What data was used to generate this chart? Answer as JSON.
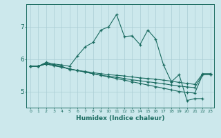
{
  "xlabel": "Humidex (Indice chaleur)",
  "background_color": "#cce8ec",
  "grid_color": "#aacdd4",
  "line_color": "#1a6b60",
  "xlim": [
    -0.5,
    23.5
  ],
  "ylim": [
    4.5,
    7.7
  ],
  "yticks": [
    5,
    6,
    7
  ],
  "xticks": [
    0,
    1,
    2,
    3,
    4,
    5,
    6,
    7,
    8,
    9,
    10,
    11,
    12,
    13,
    14,
    15,
    16,
    17,
    18,
    19,
    20,
    21,
    22,
    23
  ],
  "lines": [
    [
      5.78,
      5.78,
      5.9,
      5.85,
      5.82,
      5.78,
      6.1,
      6.38,
      6.52,
      6.9,
      7.0,
      7.38,
      6.7,
      6.72,
      6.45,
      6.9,
      6.62,
      5.82,
      5.3,
      5.52,
      4.72,
      4.78,
      4.78,
      null
    ],
    [
      5.78,
      5.78,
      5.88,
      5.82,
      5.78,
      5.68,
      5.65,
      5.62,
      5.58,
      5.55,
      5.52,
      5.5,
      5.48,
      5.45,
      5.42,
      5.4,
      5.38,
      5.35,
      5.32,
      5.28,
      5.25,
      5.22,
      5.55,
      5.55
    ],
    [
      5.78,
      5.78,
      5.85,
      5.8,
      5.75,
      5.7,
      5.65,
      5.6,
      5.55,
      5.5,
      5.45,
      5.4,
      5.35,
      5.3,
      5.25,
      5.2,
      5.15,
      5.1,
      5.05,
      5.0,
      4.97,
      4.95,
      5.52,
      5.52
    ],
    [
      5.78,
      5.78,
      5.85,
      5.8,
      5.75,
      5.7,
      5.65,
      5.6,
      5.55,
      5.5,
      5.47,
      5.44,
      5.4,
      5.36,
      5.33,
      5.3,
      5.27,
      5.24,
      5.2,
      5.17,
      5.14,
      5.12,
      5.52,
      5.52
    ]
  ]
}
